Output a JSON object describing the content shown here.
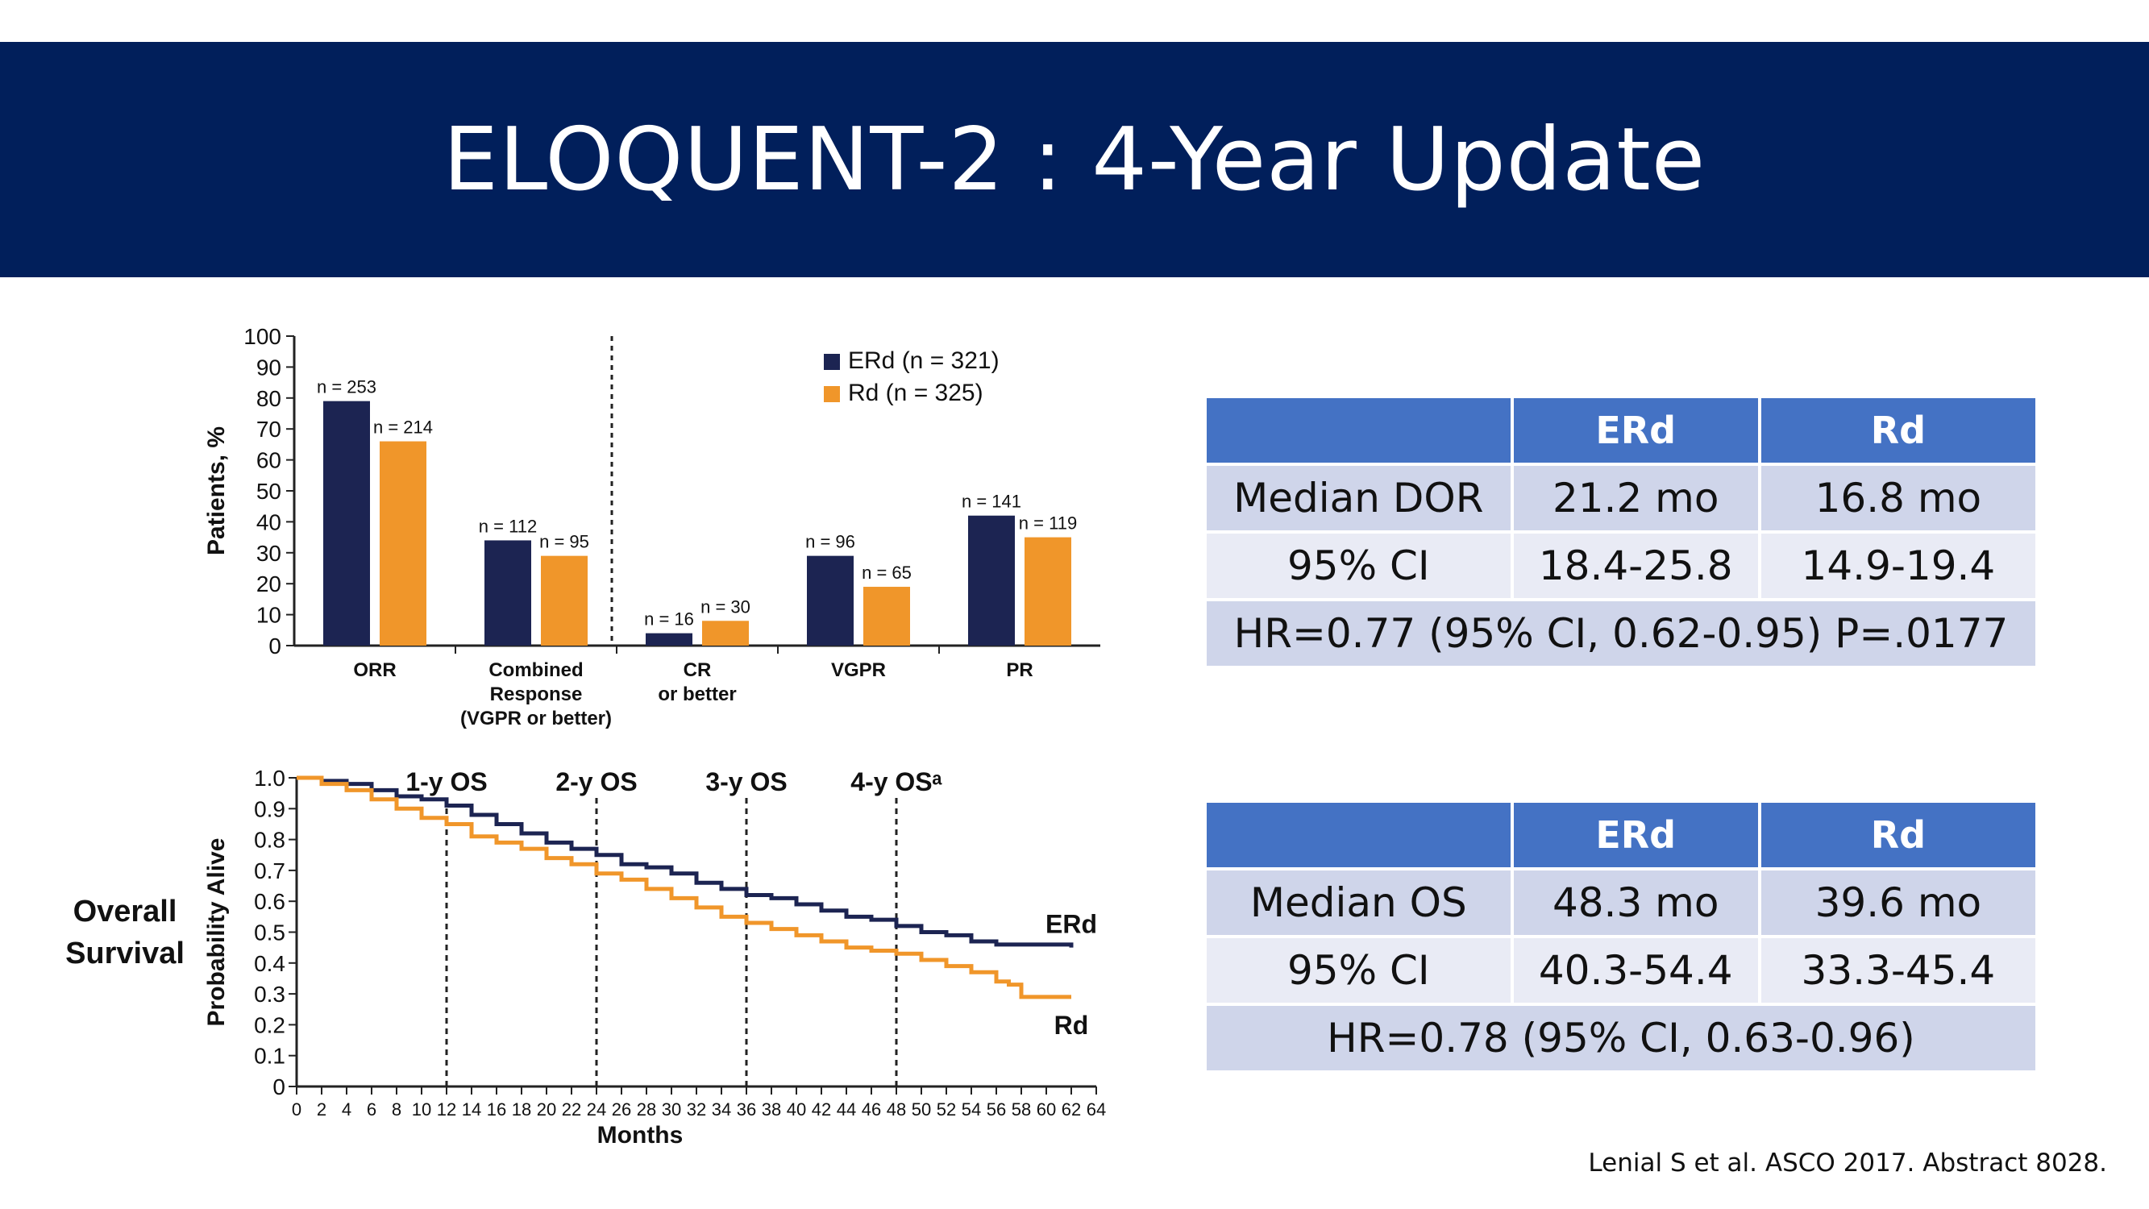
{
  "slide": {
    "title": "ELOQUENT-2 : 4-Year Update",
    "citation": "Lenial S et al. ASCO 2017. Abstract 8028.",
    "side_label_line1": "Overall",
    "side_label_line2": "Survival"
  },
  "colors": {
    "title_bg": "#011f5b",
    "erd": "#1c2452",
    "rd": "#f0962a",
    "table_head": "#4472c4"
  },
  "chart_data": [
    {
      "type": "bar",
      "ylabel": "Patients, %",
      "ylim": [
        0,
        100
      ],
      "yticks": [
        0,
        10,
        20,
        30,
        40,
        50,
        60,
        70,
        80,
        90,
        100
      ],
      "categories": [
        [
          "ORR"
        ],
        [
          "Combined",
          "Response",
          "(VGPR or better)"
        ],
        [
          "CR",
          "or better"
        ],
        [
          "VGPR"
        ],
        [
          "PR"
        ]
      ],
      "series": [
        {
          "name": "ERd (n = 321)",
          "color": "#1c2452",
          "values": [
            79,
            34,
            4,
            29,
            42
          ],
          "labels": [
            "n = 253",
            "n = 112",
            "n = 16",
            "n = 96",
            "n = 141"
          ]
        },
        {
          "name": "Rd (n = 325)",
          "color": "#f0962a",
          "values": [
            66,
            29,
            8,
            19,
            35
          ],
          "labels": [
            "n = 214",
            "n = 95",
            "n = 30",
            "n = 65",
            "n = 119"
          ]
        }
      ],
      "divider_after_category": 2,
      "legend_position": "top-right"
    },
    {
      "type": "line",
      "xlabel": "Months",
      "ylabel": "Probability Alive",
      "xlim": [
        0,
        64
      ],
      "ylim": [
        0,
        1.0
      ],
      "xticks": [
        0,
        2,
        4,
        6,
        8,
        10,
        12,
        14,
        16,
        18,
        20,
        22,
        24,
        26,
        28,
        30,
        32,
        34,
        36,
        38,
        40,
        42,
        44,
        46,
        48,
        50,
        52,
        54,
        56,
        58,
        60,
        62,
        64
      ],
      "yticks": [
        "0",
        "0.1",
        "0.2",
        "0.3",
        "0.4",
        "0.5",
        "0.6",
        "0.7",
        "0.8",
        "0.9",
        "1.0"
      ],
      "annotations": [
        {
          "x": 12,
          "text": "1-y OS"
        },
        {
          "x": 24,
          "text": "2-y OS"
        },
        {
          "x": 36,
          "text": "3-y OS"
        },
        {
          "x": 48,
          "text": "4-y OSᵃ"
        }
      ],
      "series": [
        {
          "name": "ERd",
          "color": "#1c2452",
          "x": [
            0,
            2,
            4,
            6,
            8,
            10,
            12,
            14,
            16,
            18,
            20,
            22,
            24,
            26,
            28,
            30,
            32,
            34,
            36,
            38,
            40,
            42,
            44,
            46,
            48,
            50,
            52,
            54,
            56,
            58,
            60,
            62
          ],
          "y": [
            1.0,
            0.99,
            0.98,
            0.96,
            0.94,
            0.93,
            0.91,
            0.88,
            0.85,
            0.82,
            0.79,
            0.77,
            0.75,
            0.72,
            0.71,
            0.69,
            0.66,
            0.64,
            0.62,
            0.61,
            0.59,
            0.57,
            0.55,
            0.54,
            0.52,
            0.5,
            0.49,
            0.47,
            0.46,
            0.46,
            0.46,
            0.45
          ]
        },
        {
          "name": "Rd",
          "color": "#f0962a",
          "x": [
            0,
            2,
            4,
            6,
            8,
            10,
            12,
            14,
            16,
            18,
            20,
            22,
            24,
            26,
            28,
            30,
            32,
            34,
            36,
            38,
            40,
            42,
            44,
            46,
            48,
            50,
            52,
            54,
            56,
            57,
            58,
            60,
            62
          ],
          "y": [
            1.0,
            0.98,
            0.96,
            0.93,
            0.9,
            0.87,
            0.85,
            0.81,
            0.79,
            0.77,
            0.74,
            0.72,
            0.69,
            0.67,
            0.64,
            0.61,
            0.58,
            0.55,
            0.53,
            0.51,
            0.49,
            0.47,
            0.45,
            0.44,
            0.43,
            0.41,
            0.39,
            0.37,
            0.34,
            0.33,
            0.29,
            0.29,
            0.29
          ]
        }
      ]
    }
  ],
  "tables": {
    "dor": {
      "head": [
        "",
        "ERd",
        "Rd"
      ],
      "rows": [
        [
          "Median DOR",
          "21.2 mo",
          "16.8 mo"
        ],
        [
          "95% CI",
          "18.4-25.8",
          "14.9-19.4"
        ]
      ],
      "footer": "HR=0.77 (95% CI, 0.62-0.95) P=.0177"
    },
    "os": {
      "head": [
        "",
        "ERd",
        "Rd"
      ],
      "rows": [
        [
          "Median OS",
          "48.3 mo",
          "39.6 mo"
        ],
        [
          "95% CI",
          "40.3-54.4",
          "33.3-45.4"
        ]
      ],
      "footer": "HR=0.78 (95% CI, 0.63-0.96)"
    }
  }
}
